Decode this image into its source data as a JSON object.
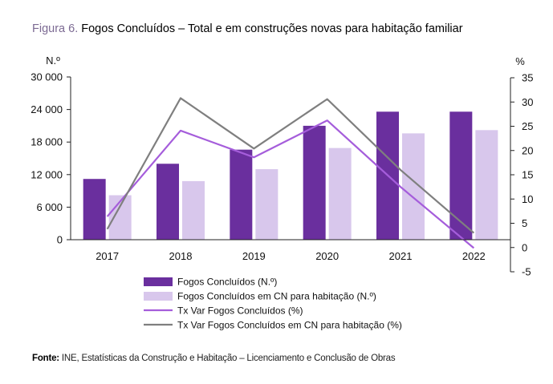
{
  "title": {
    "prefix": "Figura 6.",
    "text": "Fogos Concluídos – Total e em construções novas para habitação familiar"
  },
  "source": {
    "label": "Fonte:",
    "text": " INE, Estatísticas da Construção e Habitação – Licenciamento e Conclusão de Obras"
  },
  "colors": {
    "fogos": "#6a2f9e",
    "fogos_cn": "#d8c7ec",
    "tx_fogos": "#a55ddb",
    "tx_fogos_cn": "#7f7f7f"
  },
  "chart_data": {
    "type": "bar",
    "categories": [
      "2017",
      "2018",
      "2019",
      "2020",
      "2021",
      "2022"
    ],
    "y_left": {
      "label": "N.º",
      "ylim": [
        0,
        30000
      ],
      "ticks": [
        "0",
        "6 000",
        "12 000",
        "18 000",
        "24 000",
        "30 000"
      ],
      "tick_values": [
        0,
        6000,
        12000,
        18000,
        24000,
        30000
      ]
    },
    "y_right": {
      "label": "%",
      "ylim": [
        -5,
        35
      ],
      "ticks": [
        "-5",
        "0",
        "5",
        "10",
        "15",
        "20",
        "25",
        "30",
        "35"
      ],
      "tick_values": [
        -5,
        0,
        5,
        10,
        15,
        20,
        25,
        30,
        35
      ]
    },
    "series": [
      {
        "name": "Fogos Concluídos (N.º)",
        "kind": "bar",
        "axis": "left",
        "values": [
          11200,
          14000,
          16600,
          21000,
          23600,
          23600
        ]
      },
      {
        "name": "Fogos Concluídos em CN para habitação (N.º)",
        "kind": "bar",
        "axis": "left",
        "values": [
          8200,
          10800,
          13000,
          16900,
          19600,
          20200
        ]
      },
      {
        "name": "Tx Var Fogos Concluídos (%)",
        "kind": "line",
        "axis": "right",
        "values": [
          6.4,
          24.1,
          18.6,
          26.2,
          12.5,
          -0.1
        ]
      },
      {
        "name": "Tx Var Fogos Concluídos em CN para habitação  (%)",
        "kind": "line",
        "axis": "right",
        "values": [
          3.8,
          30.8,
          20.4,
          30.6,
          16.0,
          3.0
        ]
      }
    ],
    "grid": false,
    "legend_position": "bottom"
  }
}
